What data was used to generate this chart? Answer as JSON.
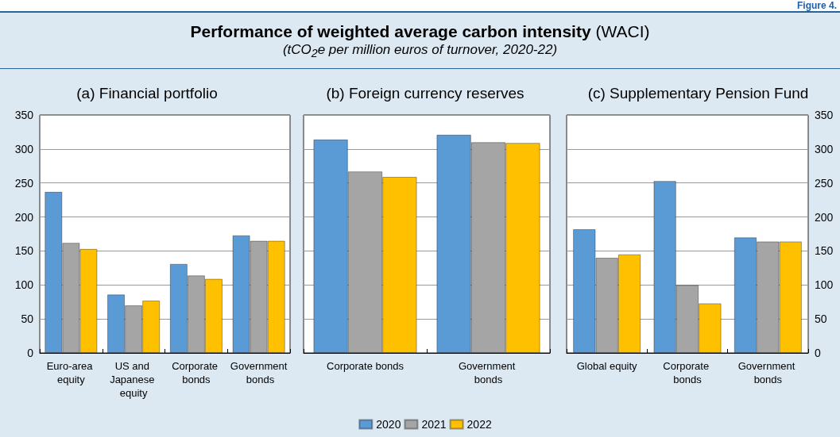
{
  "chart_data": [
    {
      "type": "bar",
      "title": "(a) Financial portfolio",
      "annotations": [
        "Figure 4.",
        "Performance of weighted average carbon intensity (WACI)",
        "(tCO$_{2}$e per million euros of turnover, 2020-22)"
      ],
      "categories": [
        "Euro-area equity",
        "US and Japanese equity",
        "Corporate bonds",
        "Government bonds"
      ],
      "series": [
        {
          "color": "#5b9bd5",
          "values": [
            237,
            86,
            131,
            173
          ]
        },
        {
          "color": "#a5a5a5",
          "values": [
            162,
            70,
            114,
            165
          ]
        },
        {
          "color": "#ffc000",
          "values": [
            153,
            77,
            109,
            165
          ]
        }
      ],
      "ylim": [
        0,
        350
      ],
      "yticks": [
        0,
        50,
        100,
        150,
        200,
        250,
        300,
        350
      ],
      "grid": "y"
    },
    {
      "type": "bar",
      "title": "(b) Foreign currency reserves",
      "categories": [
        "Corporate bonds",
        "Government bonds"
      ],
      "series": [
        {
          "name": "2020",
          "color": "#5b9bd5",
          "values": [
            314,
            321
          ]
        },
        {
          "name": "2021",
          "color": "#a5a5a5",
          "values": [
            267,
            310
          ]
        },
        {
          "name": "2022",
          "color": "#ffc000",
          "values": [
            259,
            309
          ]
        }
      ],
      "ylim": [
        0,
        350
      ],
      "yticks": [
        0,
        50,
        100,
        150,
        200,
        250,
        300,
        350
      ],
      "grid": "y",
      "tick_labels": "x",
      "legend": "bottom"
    },
    {
      "type": "bar",
      "title": "(c) Supplementary Pension Fund",
      "categories": [
        "Global equity",
        "Corporate bonds",
        "Government bonds"
      ],
      "series": [
        {
          "color": "#5b9bd5",
          "axis": "y2",
          "values": [
            182,
            253,
            170
          ]
        },
        {
          "color": "#a5a5a5",
          "axis": "y2",
          "values": [
            140,
            100,
            164
          ]
        },
        {
          "color": "#ffc000",
          "axis": "y2",
          "values": [
            145,
            73,
            164
          ]
        }
      ],
      "y2lim": [
        0,
        350
      ],
      "y2ticks": [
        0,
        50,
        100,
        150,
        200,
        250,
        300,
        350
      ],
      "grid": "y"
    }
  ]
}
